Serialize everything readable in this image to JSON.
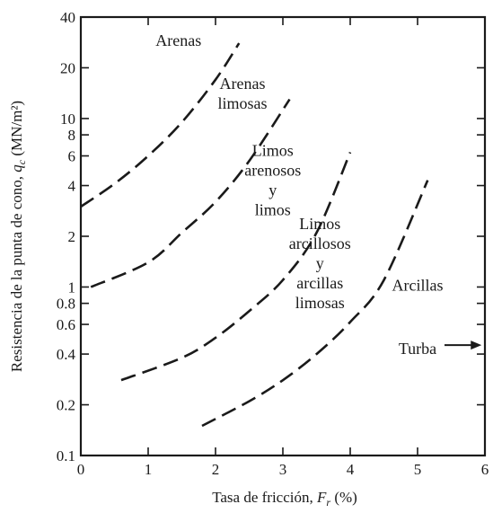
{
  "chart_data": {
    "type": "line",
    "xlabel_main": "Tasa de fricción, ",
    "xlabel_var": "F",
    "xlabel_sub": "r",
    "xlabel_unit": " (%)",
    "ylabel_main": "Resistencia de la punta de cono, ",
    "ylabel_var": "q",
    "ylabel_sub": "c",
    "ylabel_unit": " (MN/m²)",
    "xlim": [
      0,
      6
    ],
    "ylim": [
      0.1,
      40
    ],
    "yscale": "log",
    "xticks": [
      0,
      1,
      2,
      3,
      4,
      5,
      6
    ],
    "xtick_labels": [
      "0",
      "1",
      "2",
      "3",
      "4",
      "5",
      "6"
    ],
    "yticks": [
      0.1,
      0.2,
      0.4,
      0.6,
      0.8,
      1,
      2,
      4,
      6,
      8,
      10,
      20,
      40
    ],
    "ytick_labels": [
      "0.1",
      "0.2",
      "0.4",
      "0.6",
      "0.8",
      "1",
      "2",
      "4",
      "6",
      "8",
      "10",
      "20",
      "40"
    ],
    "series": [
      {
        "style": "dashed",
        "x": [
          0.0,
          0.5,
          1.0,
          1.5,
          2.0,
          2.35
        ],
        "y": [
          3.0,
          4.1,
          6.0,
          9.5,
          17.0,
          28.0
        ]
      },
      {
        "style": "dashed",
        "x": [
          0.15,
          1.0,
          1.5,
          2.0,
          2.5,
          3.1
        ],
        "y": [
          1.0,
          1.4,
          2.1,
          3.2,
          5.6,
          13.0
        ]
      },
      {
        "style": "dashed",
        "x": [
          0.6,
          1.5,
          2.0,
          2.5,
          3.0,
          3.5,
          4.0
        ],
        "y": [
          0.28,
          0.38,
          0.5,
          0.72,
          1.1,
          2.1,
          6.3
        ]
      },
      {
        "style": "dashed",
        "x": [
          1.8,
          2.5,
          3.0,
          3.5,
          4.0,
          4.5,
          5.15
        ],
        "y": [
          0.15,
          0.21,
          0.28,
          0.4,
          0.62,
          1.1,
          4.3
        ]
      }
    ],
    "annotations": [
      {
        "lines": [
          "Arenas"
        ],
        "x": 1.45,
        "y": 27
      },
      {
        "lines": [
          "Arenas",
          "limosas"
        ],
        "x": 2.4,
        "y": 15
      },
      {
        "lines": [
          "Limos",
          "arenosos",
          "y",
          "limos"
        ],
        "x": 2.85,
        "y": 6
      },
      {
        "lines": [
          "Limos",
          "arcillosos",
          "y",
          "arcillas",
          "limosas"
        ],
        "x": 3.55,
        "y": 2.2
      },
      {
        "lines": [
          "Arcillas"
        ],
        "x": 5.0,
        "y": 0.95
      },
      {
        "lines": [
          "Turba"
        ],
        "x": 5.0,
        "y": 0.4
      }
    ],
    "arrow": {
      "from": [
        5.4,
        0.42
      ],
      "to": [
        5.95,
        0.42
      ],
      "label": "Turba"
    }
  }
}
